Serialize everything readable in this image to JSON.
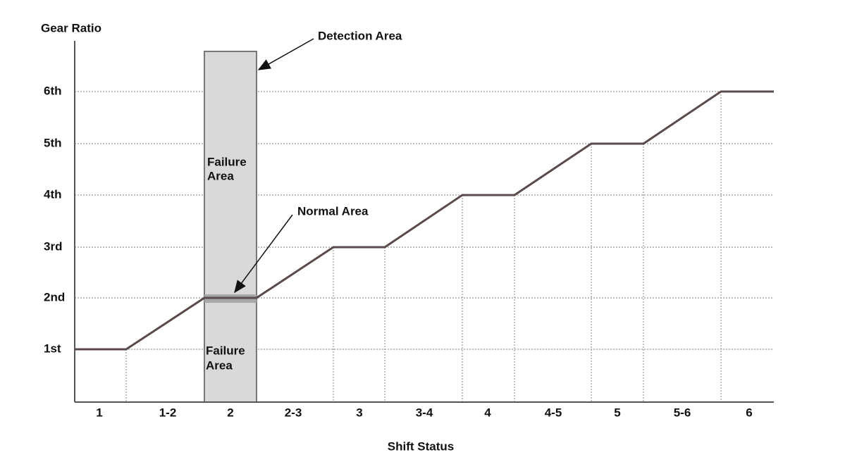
{
  "axis": {
    "y_title": "Gear Ratio",
    "x_title": "Shift Status",
    "y_labels": [
      "1st",
      "2nd",
      "3rd",
      "4th",
      "5th",
      "6th"
    ],
    "x_labels": [
      "1",
      "1-2",
      "2",
      "2-3",
      "3",
      "3-4",
      "4",
      "4-5",
      "5",
      "5-6",
      "6"
    ]
  },
  "annotations": {
    "detection_area": "Detection Area",
    "normal_area": "Normal Area",
    "failure_area_upper": [
      "Failure",
      "Area"
    ],
    "failure_area_lower": [
      "Failure",
      "Area"
    ]
  }
}
